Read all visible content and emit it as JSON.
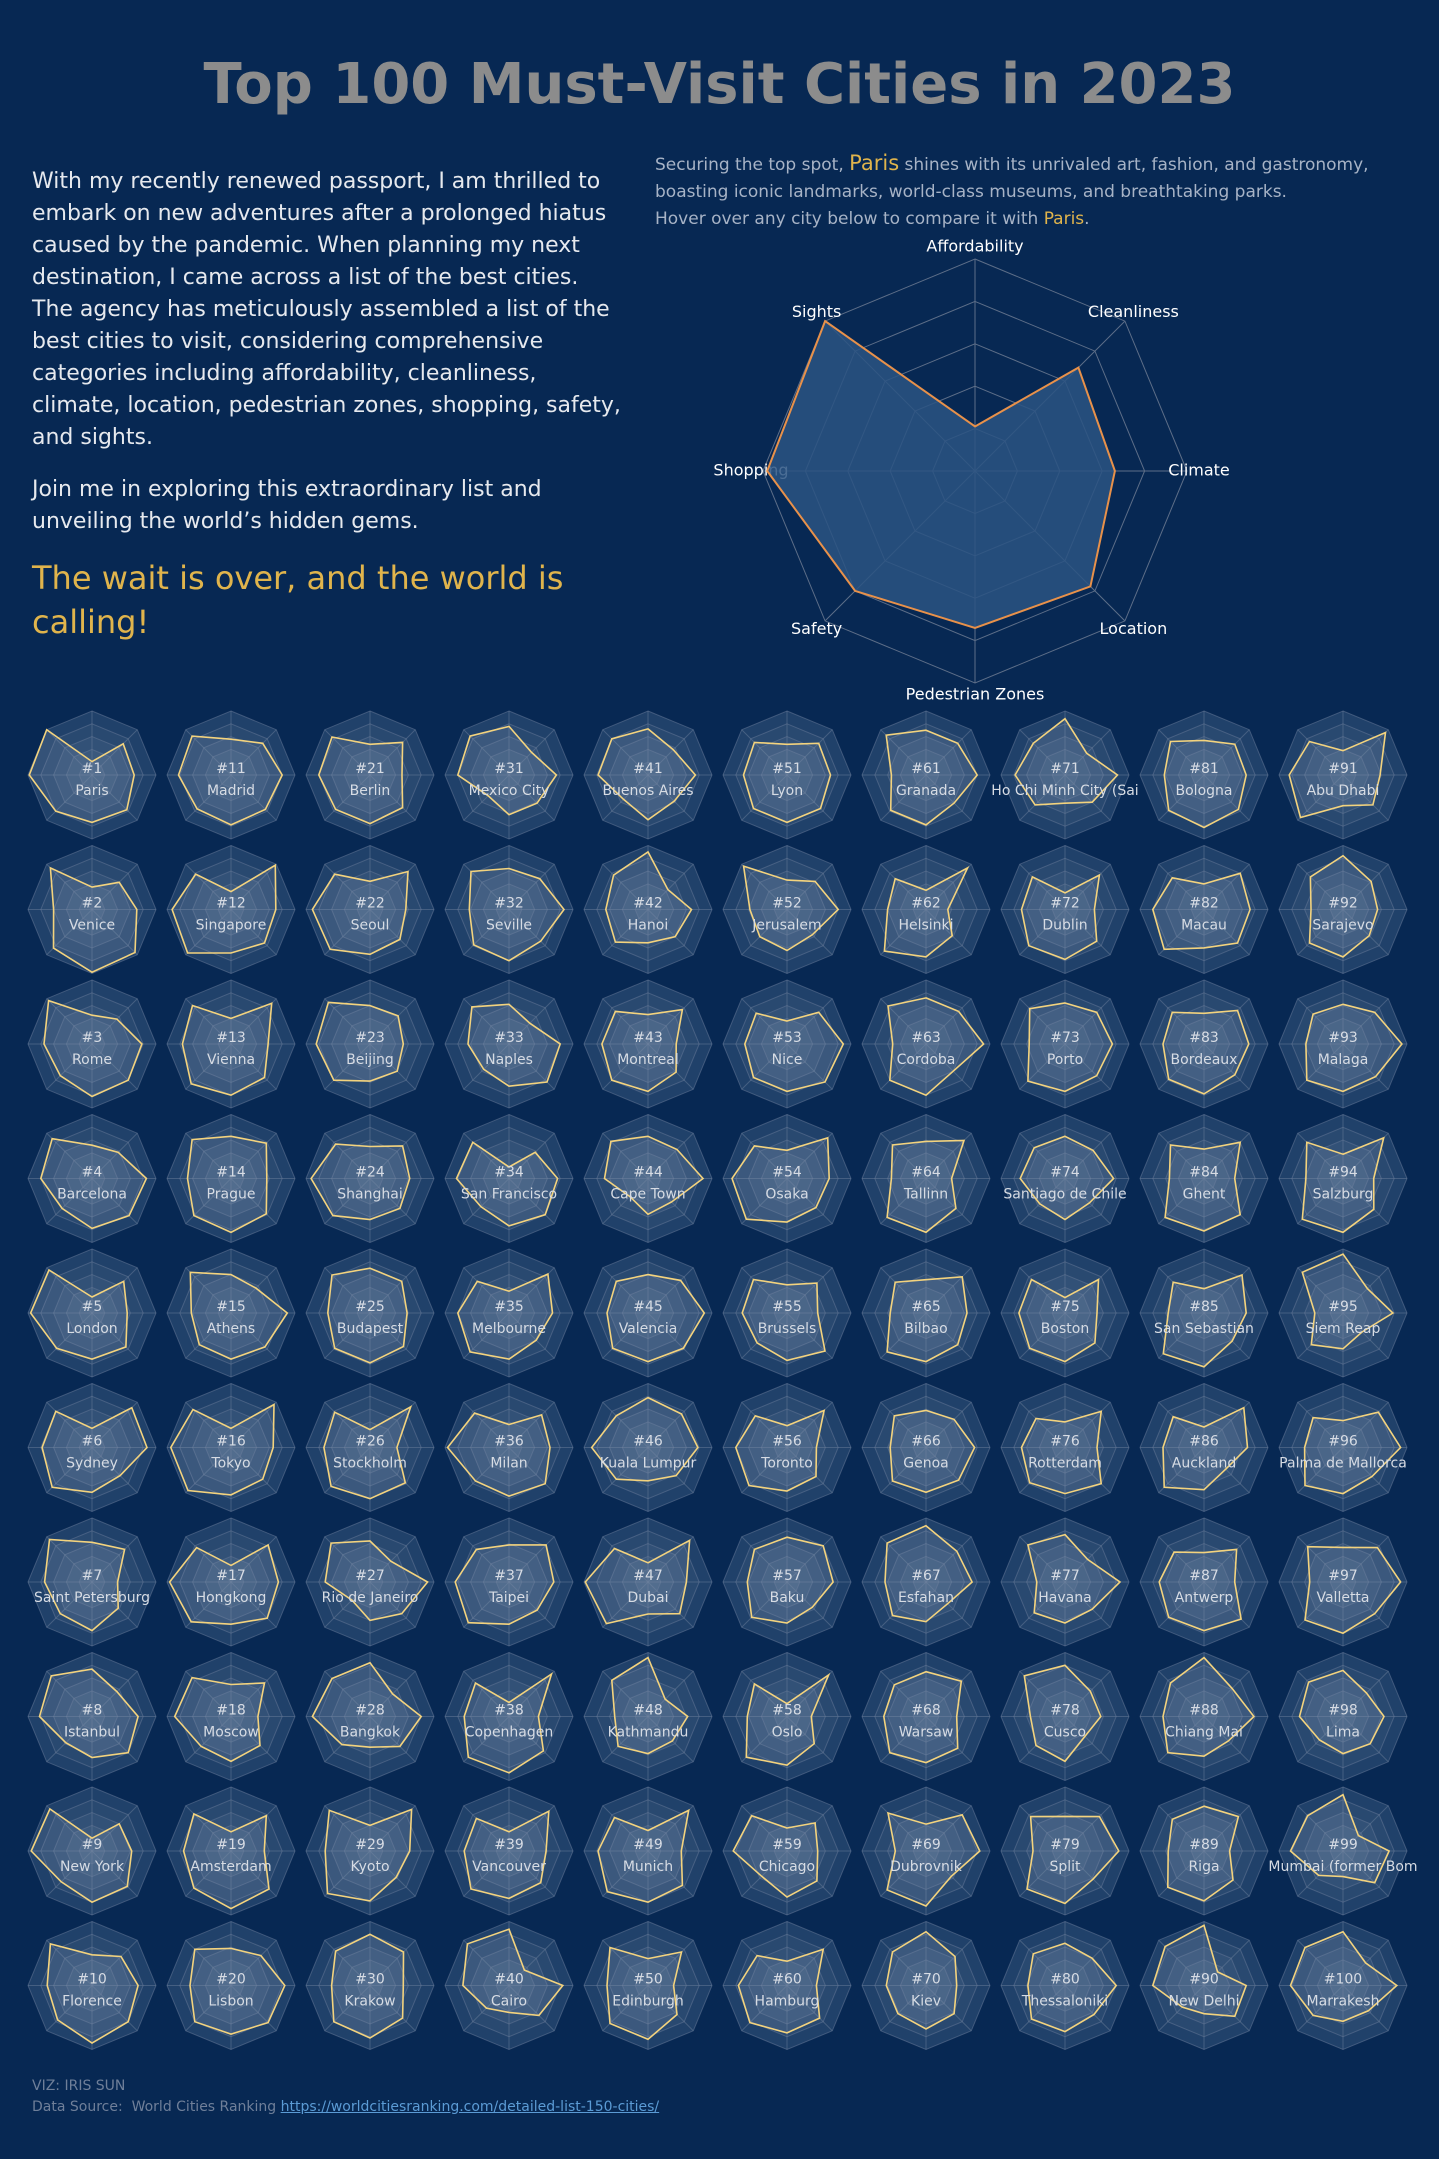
{
  "title": "Top 100 Must-Visit Cities in 2023",
  "story": [
    "With my recently renewed passport, I am thrilled to embark on new adventures after a prolonged hiatus caused by the pandemic. When planning my next destination, I came across a list of the best cities. The agency has meticulously assembled a list of the best cities to visit, considering comprehensive categories including affordability, cleanliness, climate, location, pedestrian zones, shopping, safety,  and sights.",
    "Join me in exploring this extraordinary list and unveiling the world’s hidden gems."
  ],
  "callout": "The wait is over, and the world is calling!",
  "intro": {
    "lead": "Securing the top spot, ",
    "city": "Paris",
    "body": " shines with its unrivaled art, fashion, and gastronomy, boasting iconic landmarks, world-class museums, and breathtaking parks.",
    "hover": "Hover over any city below to compare it with ",
    "hover_city": "Paris",
    "end": "."
  },
  "radar": {
    "axes": [
      "Affordability",
      "Cleanliness",
      "Climate",
      "Location",
      "Pedestrian Zones",
      "Safety",
      "Shopping",
      "Sights"
    ],
    "rlim": [
      0,
      100
    ],
    "rticks": [
      20,
      40,
      60,
      80,
      100
    ],
    "main_color": "#e8914a",
    "small_color": "#f3d37e"
  },
  "cities": [
    {
      "rank": "#1",
      "name": "Paris",
      "values": [
        21,
        69,
        66,
        77,
        74,
        80,
        98,
        100
      ]
    },
    {
      "rank": "#2",
      "name": "Venice",
      "values": [
        35,
        60,
        70,
        95,
        98,
        85,
        60,
        92
      ]
    },
    {
      "rank": "#3",
      "name": "Rome",
      "values": [
        45,
        55,
        78,
        80,
        82,
        70,
        75,
        96
      ]
    },
    {
      "rank": "#4",
      "name": "Barcelona",
      "values": [
        52,
        58,
        85,
        82,
        78,
        66,
        80,
        88
      ]
    },
    {
      "rank": "#5",
      "name": "London",
      "values": [
        25,
        70,
        55,
        75,
        72,
        78,
        96,
        95
      ]
    },
    {
      "rank": "#6",
      "name": "Sydney",
      "values": [
        30,
        88,
        86,
        62,
        70,
        88,
        78,
        80
      ]
    },
    {
      "rank": "#7",
      "name": "Saint Petersburg",
      "values": [
        62,
        72,
        40,
        58,
        76,
        70,
        74,
        94
      ]
    },
    {
      "rank": "#8",
      "name": "Istanbul",
      "values": [
        74,
        55,
        72,
        80,
        64,
        58,
        82,
        90
      ]
    },
    {
      "rank": "#9",
      "name": "New York",
      "values": [
        20,
        60,
        62,
        78,
        80,
        68,
        95,
        93
      ]
    },
    {
      "rank": "#10",
      "name": "Florence",
      "values": [
        48,
        64,
        72,
        80,
        90,
        76,
        70,
        92
      ]
    },
    {
      "rank": "#11",
      "name": "Madrid",
      "values": [
        56,
        70,
        80,
        76,
        78,
        75,
        82,
        86
      ]
    },
    {
      "rank": "#12",
      "name": "Singapore",
      "values": [
        28,
        98,
        70,
        74,
        68,
        96,
        92,
        78
      ]
    },
    {
      "rank": "#13",
      "name": "Vienna",
      "values": [
        40,
        90,
        58,
        74,
        80,
        88,
        76,
        85
      ]
    },
    {
      "rank": "#14",
      "name": "Prague",
      "values": [
        66,
        78,
        56,
        78,
        84,
        82,
        68,
        86
      ]
    },
    {
      "rank": "#15",
      "name": "Athens",
      "values": [
        60,
        55,
        88,
        75,
        72,
        70,
        62,
        90
      ]
    },
    {
      "rank": "#16",
      "name": "Tokyo",
      "values": [
        30,
        95,
        66,
        70,
        74,
        95,
        94,
        84
      ]
    },
    {
      "rank": "#17",
      "name": "Hongkong",
      "values": [
        26,
        82,
        74,
        80,
        66,
        88,
        96,
        76
      ]
    },
    {
      "rank": "#18",
      "name": "Moscow",
      "values": [
        50,
        74,
        42,
        64,
        70,
        66,
        88,
        86
      ]
    },
    {
      "rank": "#19",
      "name": "Amsterdam",
      "values": [
        30,
        78,
        52,
        84,
        90,
        82,
        74,
        82
      ]
    },
    {
      "rank": "#20",
      "name": "Lisbon",
      "values": [
        58,
        66,
        84,
        82,
        76,
        80,
        64,
        80
      ]
    },
    {
      "rank": "#21",
      "name": "Berlin",
      "values": [
        48,
        72,
        50,
        72,
        76,
        76,
        80,
        84
      ]
    },
    {
      "rank": "#22",
      "name": "Seoul",
      "values": [
        44,
        84,
        56,
        66,
        70,
        88,
        90,
        78
      ]
    },
    {
      "rank": "#23",
      "name": "Beijing",
      "values": [
        60,
        62,
        52,
        60,
        58,
        80,
        84,
        92
      ]
    },
    {
      "rank": "#24",
      "name": "Shanghai",
      "values": [
        50,
        72,
        62,
        66,
        64,
        82,
        92,
        76
      ]
    },
    {
      "rank": "#25",
      "name": "Budapest",
      "values": [
        70,
        70,
        58,
        74,
        78,
        78,
        66,
        84
      ]
    },
    {
      "rank": "#26",
      "name": "Stockholm",
      "values": [
        28,
        90,
        42,
        78,
        80,
        86,
        72,
        78
      ]
    },
    {
      "rank": "#27",
      "name": "Rio de Janeiro",
      "values": [
        64,
        46,
        90,
        70,
        60,
        40,
        70,
        86
      ]
    },
    {
      "rank": "#28",
      "name": "Bangkok",
      "values": [
        84,
        50,
        80,
        66,
        48,
        62,
        90,
        84
      ]
    },
    {
      "rank": "#29",
      "name": "Kyoto",
      "values": [
        40,
        92,
        62,
        58,
        78,
        94,
        70,
        90
      ]
    },
    {
      "rank": "#30",
      "name": "Krakow",
      "values": [
        80,
        74,
        52,
        72,
        82,
        80,
        60,
        76
      ]
    },
    {
      "rank": "#31",
      "name": "Mexico City",
      "values": [
        76,
        50,
        74,
        62,
        62,
        46,
        80,
        86
      ]
    },
    {
      "rank": "#32",
      "name": "Seville",
      "values": [
        64,
        68,
        86,
        70,
        80,
        78,
        62,
        84
      ]
    },
    {
      "rank": "#33",
      "name": "Naples",
      "values": [
        62,
        46,
        80,
        84,
        66,
        56,
        64,
        82
      ]
    },
    {
      "rank": "#34",
      "name": "San Francisco",
      "values": [
        18,
        58,
        76,
        80,
        74,
        62,
        82,
        80
      ]
    },
    {
      "rank": "#35",
      "name": "Melbourne",
      "values": [
        34,
        86,
        68,
        60,
        72,
        86,
        80,
        70
      ]
    },
    {
      "rank": "#36",
      "name": "Milan",
      "values": [
        36,
        72,
        64,
        80,
        76,
        74,
        96,
        76
      ]
    },
    {
      "rank": "#37",
      "name": "Taipei",
      "values": [
        58,
        82,
        70,
        62,
        66,
        90,
        84,
        72
      ]
    },
    {
      "rank": "#38",
      "name": "Copenhagen",
      "values": [
        22,
        94,
        46,
        76,
        88,
        90,
        70,
        74
      ]
    },
    {
      "rank": "#39",
      "name": "Vancouver",
      "values": [
        30,
        88,
        58,
        70,
        74,
        84,
        70,
        72
      ]
    },
    {
      "rank": "#40",
      "name": "Cairo",
      "values": [
        88,
        34,
        84,
        66,
        42,
        50,
        72,
        92
      ]
    },
    {
      "rank": "#41",
      "name": "Buenos Aires",
      "values": [
        72,
        56,
        74,
        58,
        70,
        54,
        78,
        80
      ]
    },
    {
      "rank": "#42",
      "name": "Hanoi",
      "values": [
        90,
        44,
        68,
        60,
        52,
        72,
        66,
        76
      ]
    },
    {
      "rank": "#43",
      "name": "Montreal",
      "values": [
        46,
        76,
        44,
        62,
        74,
        80,
        72,
        72
      ]
    },
    {
      "rank": "#44",
      "name": "Cape Town",
      "values": [
        66,
        64,
        86,
        52,
        56,
        40,
        68,
        82
      ]
    },
    {
      "rank": "#45",
      "name": "Valencia",
      "values": [
        60,
        72,
        88,
        78,
        76,
        78,
        64,
        70
      ]
    },
    {
      "rank": "#46",
      "name": "Kuala Lumpur",
      "values": [
        78,
        74,
        78,
        62,
        52,
        70,
        88,
        70
      ]
    },
    {
      "rank": "#47",
      "name": "Dubai",
      "values": [
        30,
        92,
        60,
        70,
        50,
        92,
        98,
        74
      ]
    },
    {
      "rank": "#48",
      "name": "Kathmandu",
      "values": [
        92,
        38,
        62,
        54,
        58,
        66,
        52,
        80
      ]
    },
    {
      "rank": "#49",
      "name": "Munich",
      "values": [
        32,
        90,
        52,
        76,
        80,
        90,
        78,
        74
      ]
    },
    {
      "rank": "#50",
      "name": "Edinburgh",
      "values": [
        42,
        74,
        40,
        64,
        84,
        84,
        64,
        84
      ]
    },
    {
      "rank": "#51",
      "name": "Lyon",
      "values": [
        48,
        70,
        68,
        74,
        74,
        74,
        68,
        72
      ]
    },
    {
      "rank": "#52",
      "name": "Jerusalem",
      "values": [
        46,
        62,
        80,
        56,
        64,
        60,
        58,
        96
      ]
    },
    {
      "rank": "#53",
      "name": "Nice",
      "values": [
        36,
        70,
        88,
        84,
        74,
        74,
        66,
        68
      ]
    },
    {
      "rank": "#54",
      "name": "Osaka",
      "values": [
        44,
        90,
        66,
        64,
        68,
        90,
        86,
        72
      ]
    },
    {
      "rank": "#55",
      "name": "Brussels",
      "values": [
        44,
        66,
        48,
        84,
        74,
        66,
        70,
        74
      ]
    },
    {
      "rank": "#56",
      "name": "Toronto",
      "values": [
        34,
        82,
        46,
        64,
        68,
        84,
        80,
        70
      ]
    },
    {
      "rank": "#57",
      "name": "Baku",
      "values": [
        70,
        80,
        72,
        56,
        64,
        78,
        62,
        72
      ]
    },
    {
      "rank": "#58",
      "name": "Oslo",
      "values": [
        20,
        92,
        38,
        60,
        76,
        90,
        62,
        72
      ]
    },
    {
      "rank": "#59",
      "name": "Chicago",
      "values": [
        36,
        62,
        48,
        66,
        72,
        56,
        84,
        78
      ]
    },
    {
      "rank": "#60",
      "name": "Hamburg",
      "values": [
        38,
        80,
        46,
        72,
        74,
        82,
        76,
        66
      ]
    },
    {
      "rank": "#61",
      "name": "Granada",
      "values": [
        70,
        70,
        80,
        62,
        78,
        78,
        54,
        88
      ]
    },
    {
      "rank": "#62",
      "name": "Helsinki",
      "values": [
        30,
        92,
        34,
        58,
        74,
        92,
        60,
        68
      ]
    },
    {
      "rank": "#63",
      "name": "Cordoba",
      "values": [
        72,
        72,
        90,
        60,
        80,
        80,
        52,
        84
      ]
    },
    {
      "rank": "#64",
      "name": "Tallinn",
      "values": [
        58,
        84,
        40,
        66,
        84,
        86,
        54,
        74
      ]
    },
    {
      "rank": "#65",
      "name": "Bilbao",
      "values": [
        52,
        80,
        64,
        70,
        76,
        86,
        56,
        68
      ]
    },
    {
      "rank": "#66",
      "name": "Genoa",
      "values": [
        58,
        62,
        76,
        72,
        70,
        74,
        56,
        70
      ]
    },
    {
      "rank": "#67",
      "name": "Esfahan",
      "values": [
        88,
        68,
        72,
        48,
        62,
        74,
        64,
        86
      ]
    },
    {
      "rank": "#68",
      "name": "Warsaw",
      "values": [
        70,
        78,
        48,
        70,
        72,
        80,
        66,
        70
      ]
    },
    {
      "rank": "#69",
      "name": "Dubrovnik",
      "values": [
        42,
        80,
        84,
        56,
        86,
        86,
        48,
        84
      ]
    },
    {
      "rank": "#70",
      "name": "Kiev",
      "values": [
        84,
        64,
        48,
        62,
        68,
        62,
        62,
        74
      ]
    },
    {
      "rank": "#71",
      "name": "Ho Chi Minh City (Sai",
      "values": [
        88,
        48,
        82,
        60,
        44,
        66,
        78,
        70
      ]
    },
    {
      "rank": "#72",
      "name": "Dublin",
      "values": [
        26,
        76,
        46,
        70,
        78,
        80,
        68,
        72
      ]
    },
    {
      "rank": "#73",
      "name": "Porto",
      "values": [
        64,
        70,
        74,
        70,
        74,
        82,
        56,
        78
      ]
    },
    {
      "rank": "#74",
      "name": "Santiago de Chile",
      "values": [
        66,
        62,
        76,
        54,
        64,
        56,
        70,
        68
      ]
    },
    {
      "rank": "#75",
      "name": "Boston",
      "values": [
        24,
        74,
        50,
        66,
        76,
        78,
        72,
        74
      ]
    },
    {
      "rank": "#76",
      "name": "Rotterdam",
      "values": [
        40,
        80,
        50,
        80,
        72,
        78,
        68,
        64
      ]
    },
    {
      "rank": "#77",
      "name": "Havana",
      "values": [
        74,
        50,
        86,
        60,
        64,
        68,
        44,
        82
      ]
    },
    {
      "rank": "#78",
      "name": "Cusco",
      "values": [
        80,
        56,
        56,
        44,
        70,
        64,
        54,
        90
      ]
    },
    {
      "rank": "#79",
      "name": "Split",
      "values": [
        54,
        76,
        84,
        62,
        82,
        84,
        50,
        76
      ]
    },
    {
      "rank": "#80",
      "name": "Thessaloniki",
      "values": [
        66,
        60,
        80,
        64,
        72,
        74,
        58,
        70
      ]
    },
    {
      "rank": "#81",
      "name": "Bologna",
      "values": [
        54,
        68,
        66,
        76,
        82,
        78,
        62,
        74
      ]
    },
    {
      "rank": "#82",
      "name": "Macau",
      "values": [
        40,
        80,
        72,
        74,
        60,
        88,
        80,
        70
      ]
    },
    {
      "rank": "#83",
      "name": "Bordeaux",
      "values": [
        48,
        74,
        70,
        68,
        78,
        78,
        64,
        70
      ]
    },
    {
      "rank": "#84",
      "name": "Ghent",
      "values": [
        46,
        80,
        48,
        80,
        82,
        86,
        54,
        74
      ]
    },
    {
      "rank": "#85",
      "name": "San Sebastian",
      "values": [
        38,
        84,
        66,
        62,
        84,
        90,
        56,
        68
      ]
    },
    {
      "rank": "#86",
      "name": "Auckland",
      "values": [
        32,
        88,
        68,
        48,
        66,
        88,
        64,
        68
      ]
    },
    {
      "rank": "#87",
      "name": "Antwerp",
      "values": [
        46,
        72,
        48,
        82,
        76,
        78,
        70,
        66
      ]
    },
    {
      "rank": "#88",
      "name": "Chiang Mai",
      "values": [
        92,
        62,
        78,
        54,
        62,
        80,
        64,
        74
      ]
    },
    {
      "rank": "#89",
      "name": "Riga",
      "values": [
        70,
        76,
        40,
        64,
        78,
        80,
        56,
        70
      ]
    },
    {
      "rank": "#90",
      "name": "New Delhi",
      "values": [
        94,
        30,
        66,
        68,
        44,
        48,
        80,
        86
      ]
    },
    {
      "rank": "#91",
      "name": "Abu Dhabi",
      "values": [
        38,
        94,
        58,
        66,
        48,
        94,
        84,
        74
      ]
    },
    {
      "rank": "#92",
      "name": "Sarajevo",
      "values": [
        84,
        62,
        54,
        58,
        74,
        74,
        50,
        72
      ]
    },
    {
      "rank": "#93",
      "name": "Malaga",
      "values": [
        62,
        70,
        92,
        72,
        74,
        80,
        58,
        66
      ]
    },
    {
      "rank": "#94",
      "name": "Salzburg",
      "values": [
        38,
        90,
        48,
        68,
        84,
        90,
        58,
        80
      ]
    },
    {
      "rank": "#95",
      "name": "Siem Reap",
      "values": [
        92,
        54,
        78,
        42,
        56,
        70,
        44,
        90
      ]
    },
    {
      "rank": "#96",
      "name": "Palma de Mallorca",
      "values": [
        42,
        78,
        90,
        64,
        72,
        84,
        60,
        66
      ]
    },
    {
      "rank": "#97",
      "name": "Valletta",
      "values": [
        54,
        76,
        90,
        70,
        80,
        84,
        52,
        78
      ]
    },
    {
      "rank": "#98",
      "name": "Lima",
      "values": [
        72,
        52,
        64,
        60,
        58,
        52,
        68,
        76
      ]
    },
    {
      "rank": "#99",
      "name": "Mumbai (former Bom",
      "values": [
        88,
        34,
        72,
        70,
        40,
        54,
        82,
        78
      ]
    },
    {
      "rank": "#100",
      "name": "Marrakesh",
      "values": [
        84,
        50,
        84,
        56,
        56,
        66,
        82,
        84
      ]
    }
  ],
  "footer": {
    "credit": "VIZ: IRIS SUN",
    "source": "Data Source:  World Cities Ranking ",
    "link": "https://worldcitiesranking.com/detailed-list-150-cities/"
  }
}
